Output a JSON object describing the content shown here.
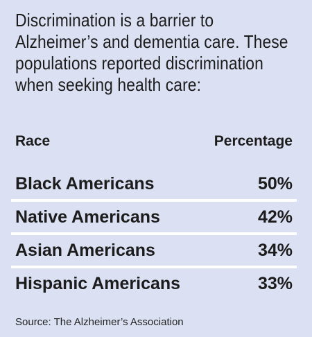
{
  "intro_text": "Discrimination is a barrier to Alzheimer’s and dementia care. These populations reported discrimination when seeking health care:",
  "source": "Source: The Alzheimer’s Association",
  "colors": {
    "background": "#dbe1f3",
    "separator": "#ffffff",
    "text": "#1c1c1c"
  },
  "chart_data": {
    "type": "table",
    "columns": [
      "Race",
      "Percentage"
    ],
    "rows": [
      {
        "label": "Black Americans",
        "value": 50,
        "display": "50%"
      },
      {
        "label": "Native Americans",
        "value": 42,
        "display": "42%"
      },
      {
        "label": "Asian Americans",
        "value": 34,
        "display": "34%"
      },
      {
        "label": "Hispanic Americans",
        "value": 33,
        "display": "33%"
      }
    ]
  }
}
